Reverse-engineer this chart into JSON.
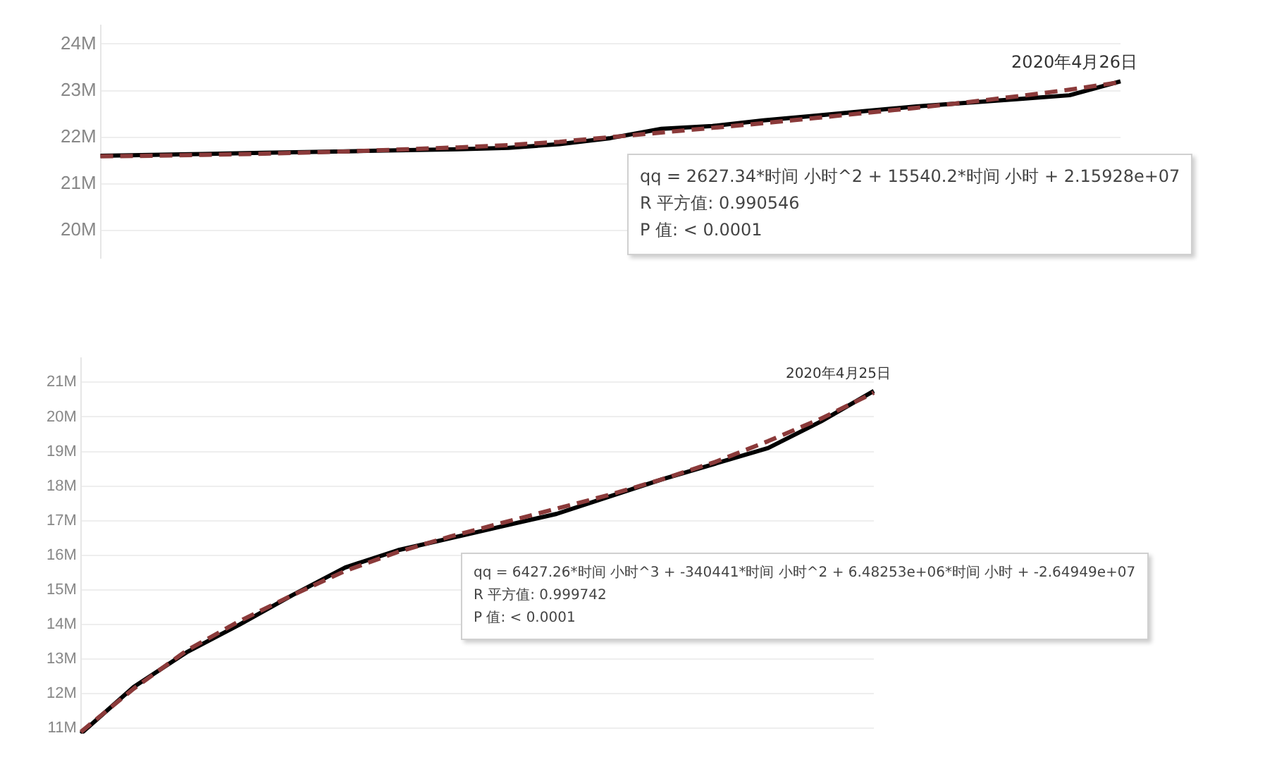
{
  "chart_data": [
    {
      "type": "line",
      "categories": [
        null,
        null,
        null,
        null,
        null,
        null,
        null,
        null,
        null,
        null,
        null,
        null,
        null,
        null,
        null,
        null,
        null,
        null,
        null,
        null,
        null
      ],
      "ylim": [
        19400000,
        24400000
      ],
      "yticks": [
        {
          "value": 20000000,
          "label": "20M"
        },
        {
          "value": 21000000,
          "label": "21M"
        },
        {
          "value": 22000000,
          "label": "22M"
        },
        {
          "value": 23000000,
          "label": "23M"
        },
        {
          "value": 24000000,
          "label": "24M"
        }
      ],
      "series": [
        {
          "color": "#000000",
          "values": [
            21600000,
            21620000,
            21640000,
            21660000,
            21680000,
            21700000,
            21720000,
            21740000,
            21770000,
            21850000,
            21980000,
            22180000,
            22240000,
            22360000,
            22460000,
            22560000,
            22660000,
            22740000,
            22820000,
            22900000,
            23200000
          ]
        },
        {
          "color": "#8b3a3a",
          "line_style": "dashed",
          "values": [
            21590000,
            21600000,
            21620000,
            21640000,
            21670000,
            21700000,
            21740000,
            21780000,
            21830000,
            21900000,
            22000000,
            22100000,
            22200000,
            22300000,
            22410000,
            22520000,
            22630000,
            22750000,
            22880000,
            23020000,
            23180000
          ]
        }
      ],
      "annotations": [
        "2020年4月26日",
        "qq = 2627.34*时间 小时^2 + 15540.2*时间 小时 + 2.15928e+07",
        "R 平方值: 0.990546",
        "P 值: < 0.0001"
      ],
      "grid": "y",
      "marker": "none",
      "tick_labels": "y"
    },
    {
      "type": "line",
      "categories": [
        null,
        null,
        null,
        null,
        null,
        null,
        null,
        null,
        null,
        null,
        null,
        null,
        null,
        null,
        null,
        null
      ],
      "ylim": [
        10850000,
        21700000
      ],
      "yticks": [
        {
          "value": 11000000,
          "label": "11M"
        },
        {
          "value": 12000000,
          "label": "12M"
        },
        {
          "value": 13000000,
          "label": "13M"
        },
        {
          "value": 14000000,
          "label": "14M"
        },
        {
          "value": 15000000,
          "label": "15M"
        },
        {
          "value": 16000000,
          "label": "16M"
        },
        {
          "value": 17000000,
          "label": "17M"
        },
        {
          "value": 18000000,
          "label": "18M"
        },
        {
          "value": 19000000,
          "label": "19M"
        },
        {
          "value": 20000000,
          "label": "20M"
        },
        {
          "value": 21000000,
          "label": "21M"
        }
      ],
      "series": [
        {
          "color": "#000000",
          "values": [
            10850000,
            12200000,
            13200000,
            14000000,
            14850000,
            15650000,
            16150000,
            16500000,
            16850000,
            17200000,
            17700000,
            18200000,
            18650000,
            19100000,
            19870000,
            20750000
          ]
        },
        {
          "color": "#8b3a3a",
          "line_style": "dashed",
          "values": [
            10900000,
            12150000,
            13250000,
            14100000,
            14850000,
            15550000,
            16100000,
            16550000,
            16950000,
            17350000,
            17750000,
            18200000,
            18700000,
            19300000,
            19950000,
            20700000
          ]
        }
      ],
      "annotations": [
        "2020年4月25日",
        "qq = 6427.26*时间 小时^3 + -340441*时间 小时^2 + 6.48253e+06*时间 小时 + -2.64949e+07",
        "R 平方值: 0.999742",
        "P 值: < 0.0001"
      ],
      "grid": "y",
      "marker": "none",
      "tick_labels": "y"
    }
  ]
}
